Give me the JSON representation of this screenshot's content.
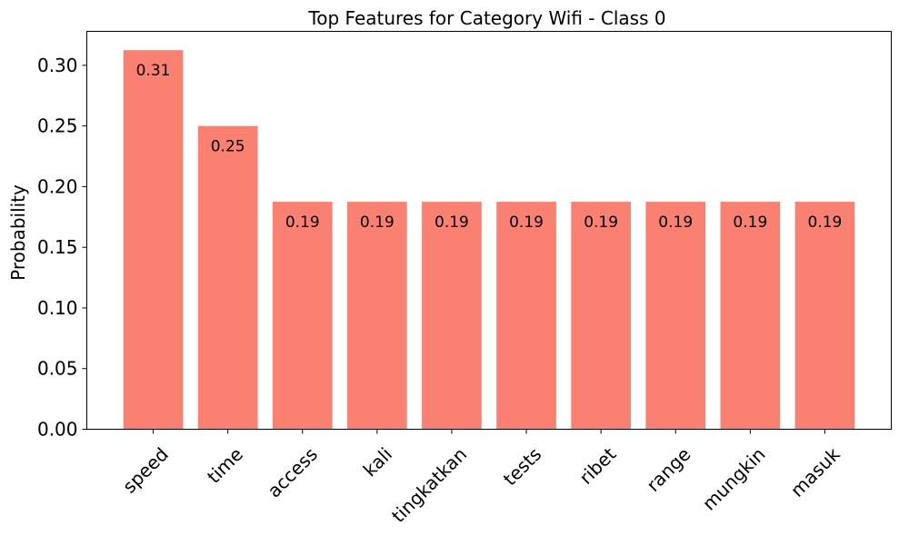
{
  "chart_data": {
    "type": "bar",
    "title": "Top Features for Category Wifi - Class 0",
    "xlabel": "",
    "ylabel": "Probability",
    "categories": [
      "speed",
      "time",
      "access",
      "kali",
      "tingkatkan",
      "tests",
      "ribet",
      "range",
      "mungkin",
      "masuk"
    ],
    "values": [
      0.3125,
      0.25,
      0.1875,
      0.1875,
      0.1875,
      0.1875,
      0.1875,
      0.1875,
      0.1875,
      0.1875
    ],
    "data_labels": [
      "0.31",
      "0.25",
      "0.19",
      "0.19",
      "0.19",
      "0.19",
      "0.19",
      "0.19",
      "0.19",
      "0.19"
    ],
    "ylim": [
      0,
      0.328
    ],
    "yticks": [
      0.0,
      0.05,
      0.1,
      0.15,
      0.2,
      0.25,
      0.3
    ],
    "ytick_labels": [
      "0.00",
      "0.05",
      "0.10",
      "0.15",
      "0.20",
      "0.25",
      "0.30"
    ],
    "bar_color": "#fa8072",
    "grid": false,
    "legend": "none"
  }
}
